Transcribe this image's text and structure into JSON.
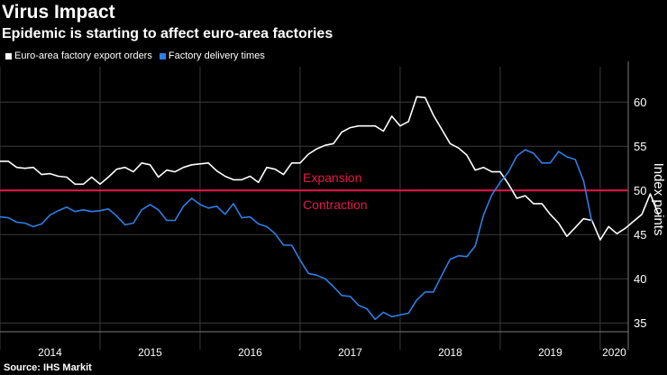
{
  "chart_data": {
    "type": "line",
    "title": "Virus Impact",
    "subtitle": "Epidemic is starting to affect euro-area factories",
    "ylabel": "Index points",
    "xlabel": "",
    "ylim": [
      34,
      64
    ],
    "yticks": [
      35,
      40,
      45,
      50,
      55,
      60
    ],
    "x_start": 2014.0,
    "x_step": 0.083333,
    "year_ticks": [
      "2014",
      "2015",
      "2016",
      "2017",
      "2018",
      "2019",
      "2020"
    ],
    "reference_line": {
      "value": 50,
      "label_above": "Expansion",
      "label_below": "Contraction"
    },
    "series": [
      {
        "name": "Euro-area factory export orders",
        "values": [
          53.3,
          53.3,
          52.6,
          52.5,
          52.6,
          51.8,
          51.9,
          51.6,
          51.5,
          50.7,
          50.7,
          51.5,
          50.7,
          51.5,
          52.4,
          52.6,
          52.1,
          53.1,
          52.9,
          51.5,
          52.3,
          52.1,
          52.6,
          52.9,
          53.0,
          53.1,
          52.2,
          51.6,
          51.2,
          51.2,
          51.6,
          50.9,
          52.6,
          52.4,
          51.8,
          53.1,
          53.1,
          54.1,
          54.7,
          55.1,
          55.3,
          56.6,
          57.1,
          57.3,
          57.3,
          57.3,
          56.7,
          58.4,
          57.3,
          57.8,
          60.6,
          60.5,
          58.5,
          56.9,
          55.3,
          54.8,
          54.0,
          52.3,
          52.6,
          52.1,
          52.1,
          50.7,
          49.1,
          49.4,
          48.5,
          48.5,
          47.3,
          46.3,
          44.8,
          45.8,
          46.8,
          46.6,
          44.4,
          45.9,
          45.1,
          45.7,
          46.5,
          47.3,
          49.6,
          47.2
        ],
        "color": "#ffffff"
      },
      {
        "name": "Factory delivery times",
        "values": [
          47.0,
          46.9,
          46.4,
          46.3,
          45.9,
          46.2,
          47.2,
          47.7,
          48.1,
          47.6,
          47.8,
          47.6,
          47.7,
          47.9,
          47.1,
          46.1,
          46.3,
          47.8,
          48.4,
          47.8,
          46.6,
          46.6,
          48.2,
          49.1,
          48.4,
          48.0,
          48.2,
          47.3,
          48.5,
          46.9,
          47.0,
          46.2,
          45.9,
          45.1,
          43.8,
          43.8,
          42.1,
          40.6,
          40.4,
          40.0,
          39.1,
          38.1,
          38.0,
          37.0,
          36.6,
          35.4,
          36.2,
          35.7,
          35.9,
          36.1,
          37.6,
          38.5,
          38.5,
          40.4,
          42.2,
          42.6,
          42.5,
          43.7,
          47.2,
          49.5,
          50.9,
          52.1,
          53.9,
          54.6,
          54.2,
          53.1,
          53.1,
          54.4,
          53.8,
          53.5,
          51.1,
          46.4
        ],
        "color": "#2e7ee6"
      }
    ]
  },
  "source": "Source: IHS Markit",
  "colors": {
    "white_series": "#ffffff",
    "blue_series": "#2e7ee6",
    "reference": "#e8184a",
    "background": "#000000"
  }
}
